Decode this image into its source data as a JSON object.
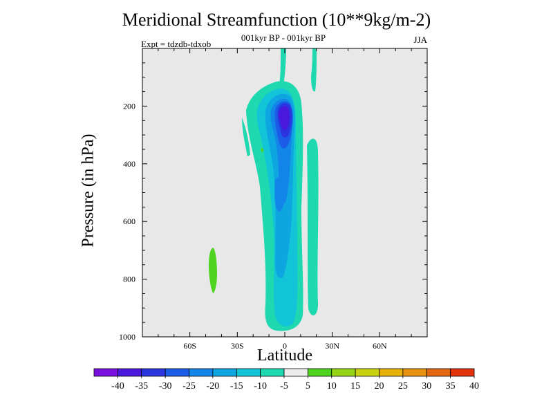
{
  "chart_data": {
    "type": "contour",
    "title": "Meridional Streamfunction (10**9kg/m-2)",
    "subtitle": "001kyr BP - 001kyr BP",
    "left_label": "Expt = tdzdb-tdxob",
    "right_label": "JJA",
    "xlabel": "Latitude",
    "ylabel": "Pressure (in hPa)",
    "x_range": [
      -90,
      90
    ],
    "y_range": [
      0,
      1000
    ],
    "y_reversed": true,
    "x_ticks": [
      {
        "value": -60,
        "label": "60S"
      },
      {
        "value": -30,
        "label": "30S"
      },
      {
        "value": 0,
        "label": "0"
      },
      {
        "value": 30,
        "label": "30N"
      },
      {
        "value": 60,
        "label": "60N"
      }
    ],
    "y_ticks": [
      {
        "value": 200,
        "label": "200"
      },
      {
        "value": 400,
        "label": "400"
      },
      {
        "value": 600,
        "label": "600"
      },
      {
        "value": 800,
        "label": "800"
      },
      {
        "value": 1000,
        "label": "1000"
      }
    ],
    "levels": [
      -40,
      -35,
      -30,
      -25,
      -20,
      -15,
      -10,
      -5,
      5,
      10,
      15,
      20,
      25,
      30,
      35,
      40
    ],
    "colorbar_colors": [
      "#7a10e0",
      "#4a17dc",
      "#2a35e0",
      "#1a5ce6",
      "#1485e8",
      "#0ea6e0",
      "#12c4d8",
      "#1ed8b0",
      "#ececec",
      "#4ed41e",
      "#96d416",
      "#c8d20e",
      "#e6b20a",
      "#e69210",
      "#e46812",
      "#e2320c"
    ],
    "background_color": "#e8e8e8",
    "features": [
      {
        "name": "main-cell",
        "level": "-10 to -5",
        "lat_range": [
          -8,
          12
        ],
        "p_range": [
          80,
          980
        ]
      },
      {
        "name": "upper-core",
        "min_value": -35,
        "lat": 0,
        "p": 230
      },
      {
        "name": "northern-band",
        "level": "-10 to -5",
        "lat_range": [
          10,
          20
        ],
        "p_range": [
          350,
          970
        ]
      },
      {
        "name": "southern-positive-patch",
        "level": "5 to 10",
        "lat_range": [
          -47,
          -43
        ],
        "p_range": [
          690,
          850
        ]
      },
      {
        "name": "top-plumes",
        "level": "-10 to -5",
        "lat_range": [
          -2,
          16
        ],
        "p_range": [
          0,
          260
        ]
      }
    ]
  }
}
